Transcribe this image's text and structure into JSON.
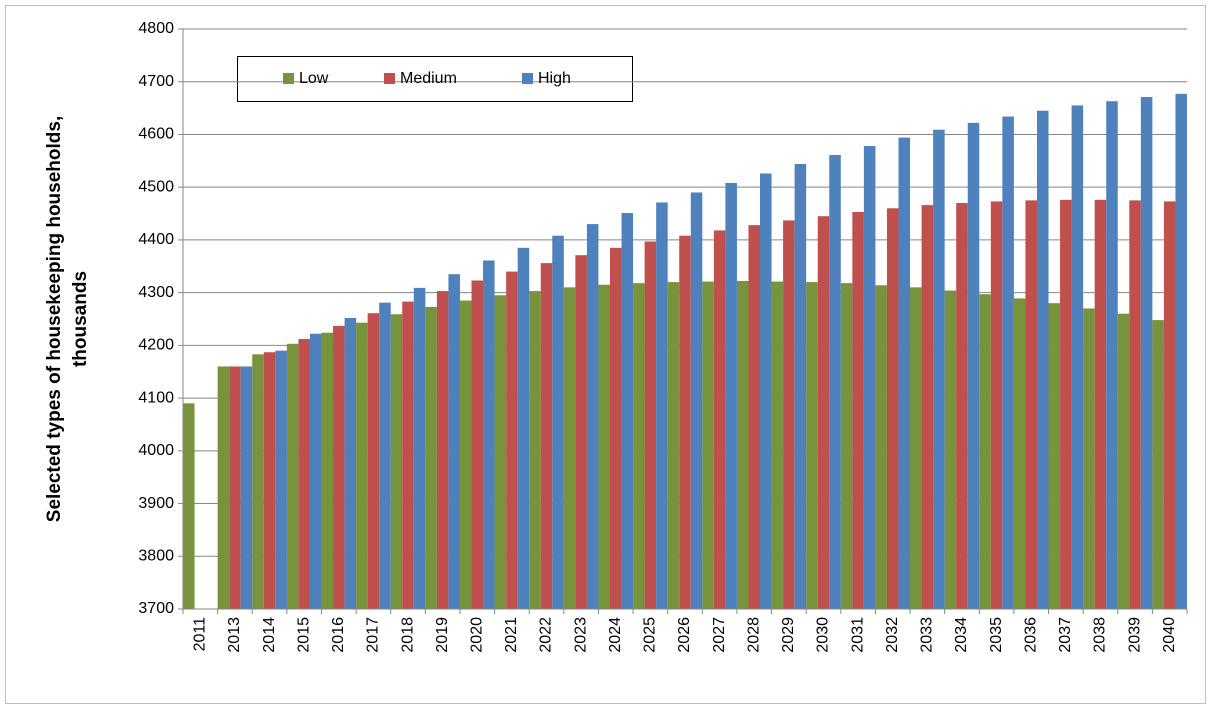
{
  "chart_data": {
    "type": "bar",
    "y_label": [
      "Selected types of housekeeping households,",
      "thousands"
    ],
    "categories": [
      "2011",
      "2013",
      "2014",
      "2015",
      "2016",
      "2017",
      "2018",
      "2019",
      "2020",
      "2021",
      "2022",
      "2023",
      "2024",
      "2025",
      "2026",
      "2027",
      "2028",
      "2029",
      "2030",
      "2031",
      "2032",
      "2033",
      "2034",
      "2035",
      "2036",
      "2037",
      "2038",
      "2039",
      "2040"
    ],
    "series": [
      {
        "name": "Low",
        "color": "#77933c",
        "values": [
          4090,
          4160,
          4183,
          4203,
          4224,
          4243,
          4259,
          4273,
          4285,
          4295,
          4303,
          4310,
          4315,
          4318,
          4320,
          4321,
          4322,
          4321,
          4320,
          4318,
          4314,
          4310,
          4304,
          4297,
          4289,
          4280,
          4270,
          4260,
          4248
        ]
      },
      {
        "name": "Medium",
        "color": "#c0504d",
        "values": [
          null,
          4160,
          4187,
          4212,
          4237,
          4261,
          4283,
          4303,
          4323,
          4340,
          4356,
          4371,
          4385,
          4397,
          4408,
          4418,
          4428,
          4437,
          4445,
          4453,
          4460,
          4466,
          4470,
          4473,
          4475,
          4476,
          4476,
          4475,
          4473
        ]
      },
      {
        "name": "High",
        "color": "#4f81bd",
        "values": [
          null,
          4160,
          4190,
          4222,
          4252,
          4281,
          4309,
          4335,
          4361,
          4385,
          4408,
          4430,
          4451,
          4471,
          4490,
          4508,
          4526,
          4544,
          4561,
          4578,
          4594,
          4609,
          4622,
          4634,
          4645,
          4655,
          4663,
          4671,
          4677
        ]
      }
    ],
    "ylim": [
      3700,
      4800
    ],
    "yticks": [
      3700,
      3800,
      3900,
      4000,
      4100,
      4200,
      4300,
      4400,
      4500,
      4600,
      4700,
      4800
    ],
    "grid": true
  }
}
